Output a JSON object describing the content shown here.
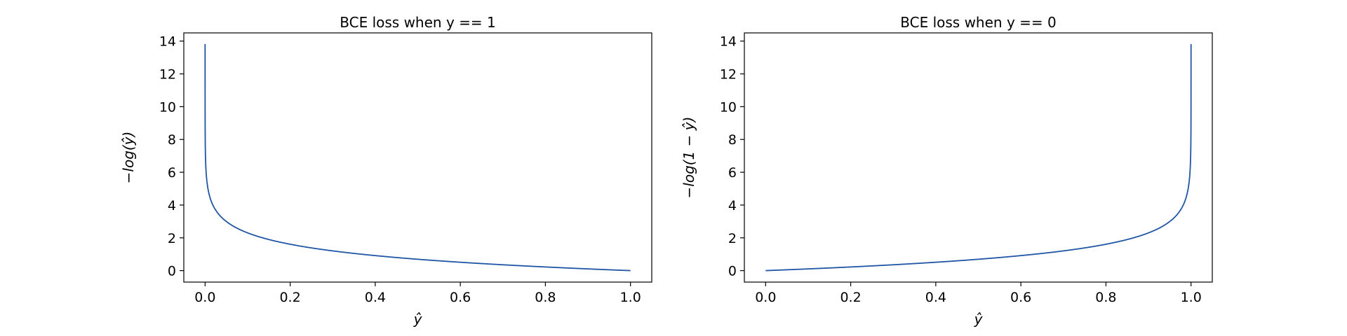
{
  "chart_data": [
    {
      "type": "line",
      "title": "BCE loss when y == 1",
      "xlabel": "ŷ",
      "ylabel": "−log(ŷ)",
      "xlim": [
        -0.05,
        1.05
      ],
      "ylim": [
        -0.7,
        14.5
      ],
      "xticks": [
        0.0,
        0.2,
        0.4,
        0.6,
        0.8,
        1.0
      ],
      "xtick_labels": [
        "0.0",
        "0.2",
        "0.4",
        "0.6",
        "0.8",
        "1.0"
      ],
      "yticks": [
        0,
        2,
        4,
        6,
        8,
        10,
        12,
        14
      ],
      "ytick_labels": [
        "0",
        "2",
        "4",
        "6",
        "8",
        "10",
        "12",
        "14"
      ],
      "function": "neg_log_yhat",
      "x_range": [
        1e-06,
        1.0
      ],
      "series": [
        {
          "color": "#1f55a5",
          "x": [
            1e-06,
            0.0001,
            0.001,
            0.005,
            0.01,
            0.02,
            0.03,
            0.05,
            0.1,
            0.2,
            0.3,
            0.4,
            0.5,
            0.6,
            0.7,
            0.8,
            0.9,
            1.0
          ],
          "y": [
            13.82,
            9.21,
            6.91,
            5.3,
            4.61,
            3.91,
            3.51,
            3.0,
            2.3,
            1.61,
            1.2,
            0.92,
            0.69,
            0.51,
            0.36,
            0.22,
            0.11,
            0.0
          ]
        }
      ],
      "grid": false,
      "legend": "none"
    },
    {
      "type": "line",
      "title": "BCE loss when y == 0",
      "xlabel": "ŷ",
      "ylabel": "−log(1 − ŷ)",
      "xlim": [
        -0.05,
        1.05
      ],
      "ylim": [
        -0.7,
        14.5
      ],
      "xticks": [
        0.0,
        0.2,
        0.4,
        0.6,
        0.8,
        1.0
      ],
      "xtick_labels": [
        "0.0",
        "0.2",
        "0.4",
        "0.6",
        "0.8",
        "1.0"
      ],
      "yticks": [
        0,
        2,
        4,
        6,
        8,
        10,
        12,
        14
      ],
      "ytick_labels": [
        "0",
        "2",
        "4",
        "6",
        "8",
        "10",
        "12",
        "14"
      ],
      "function": "neg_log_one_minus_yhat",
      "x_range": [
        0.0,
        0.999999
      ],
      "series": [
        {
          "color": "#1f55a5",
          "x": [
            0.0,
            0.1,
            0.2,
            0.3,
            0.4,
            0.5,
            0.6,
            0.7,
            0.8,
            0.9,
            0.95,
            0.97,
            0.98,
            0.99,
            0.995,
            0.999,
            0.9999,
            0.999999
          ],
          "y": [
            0.0,
            0.11,
            0.22,
            0.36,
            0.51,
            0.69,
            0.92,
            1.2,
            1.61,
            2.3,
            3.0,
            3.51,
            3.91,
            4.61,
            5.3,
            6.91,
            9.21,
            13.82
          ]
        }
      ],
      "grid": false,
      "legend": "none"
    }
  ]
}
